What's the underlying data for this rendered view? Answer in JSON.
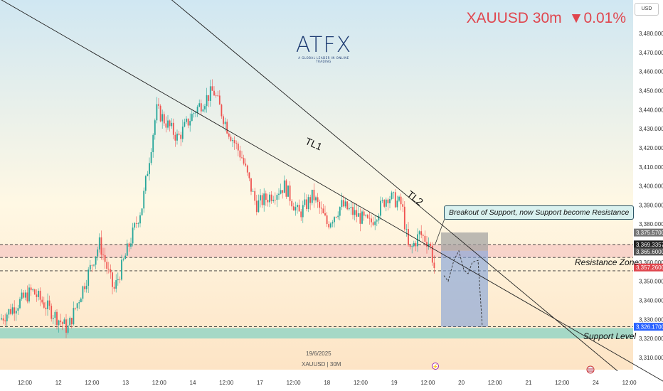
{
  "header": {
    "symbol": "XAUUSD 30m",
    "change": "▼0.01%",
    "currency": "USD",
    "logo_text": "ATFX",
    "logo_tagline": "A GLOBAL LEADER IN ONLINE TRADING"
  },
  "annotations": {
    "note": "Breakout of Support, now Support become Resistance",
    "resistance_label": "Resistance Zone",
    "support_label": "Support Level",
    "tl1": "TL1",
    "tl2": "TL2",
    "footer_date": "19/6/2025",
    "footer_symbol": "XAUUSD | 30M"
  },
  "colors": {
    "up": "#26a69a",
    "down": "#ef5350",
    "ticker": "#e0464e",
    "zone_fill": "#f6c9c4",
    "support_fill": "#8fd3c4",
    "box_fill": "#7b9fd8",
    "box_top": "#a0a0a0"
  },
  "chart_data": {
    "type": "candlestick",
    "ylim": [
      3305,
      3495
    ],
    "y_ticks": [
      "3,310.0000",
      "3,320.0000",
      "3,330.0000",
      "3,340.0000",
      "3,350.0000",
      "3,360.0000",
      "3,370.0000",
      "3,380.0000",
      "3,390.0000",
      "3,400.0000",
      "3,410.0000",
      "3,420.0000",
      "3,430.0000",
      "3,440.0000",
      "3,450.0000",
      "3,460.0000",
      "3,470.0000",
      "3,480.0000"
    ],
    "x_ticks": [
      "12:00",
      "12",
      "12:00",
      "13",
      "12:00",
      "14",
      "12:00",
      "17",
      "12:00",
      "18",
      "12:00",
      "19",
      "12:00",
      "20",
      "12:00",
      "21",
      "12:00",
      "24",
      "12:00"
    ],
    "price_tags": [
      {
        "label": "3,375.5700",
        "value": 3375.57,
        "color": "#777777"
      },
      {
        "label": "3,369.3357",
        "value": 3369.34,
        "color": "#222222"
      },
      {
        "label": "3,365.6000",
        "value": 3365.6,
        "color": "#555555"
      },
      {
        "label": "3,357.2600",
        "value": 3357.26,
        "color": "#e0464e"
      },
      {
        "label": "3,326.1700",
        "value": 3326.17,
        "color": "#2962ff"
      }
    ],
    "resistance_zone": [
      3362.5,
      3369.3
    ],
    "support_zone": [
      3320,
      3325.5
    ],
    "dashed_levels": [
      3369.3,
      3362.5,
      3355.5,
      3326.2
    ],
    "trendlines": [
      {
        "name": "TL1",
        "from": [
          0,
          3498
        ],
        "to": [
          935,
          3297
        ]
      },
      {
        "name": "TL2",
        "from": [
          240,
          3498
        ],
        "to": [
          868,
          3303
        ]
      }
    ],
    "projection_box": {
      "x0": 620,
      "x1": 686,
      "top": 3375.6,
      "mid": 3366,
      "bottom": 3326.2
    },
    "projection_path": [
      [
        624,
        3353
      ],
      [
        630,
        3350
      ],
      [
        638,
        3361
      ],
      [
        645,
        3366
      ],
      [
        652,
        3356
      ],
      [
        658,
        3354
      ],
      [
        664,
        3360
      ],
      [
        672,
        3361
      ],
      [
        678,
        3326
      ]
    ],
    "key_points": [
      [
        0,
        3330
      ],
      [
        45,
        3345
      ],
      [
        95,
        3325
      ],
      [
        140,
        3370
      ],
      [
        160,
        3345
      ],
      [
        200,
        3390
      ],
      [
        220,
        3440
      ],
      [
        250,
        3425
      ],
      [
        275,
        3440
      ],
      [
        300,
        3450
      ],
      [
        320,
        3430
      ],
      [
        340,
        3415
      ],
      [
        360,
        3390
      ],
      [
        380,
        3395
      ],
      [
        400,
        3400
      ],
      [
        420,
        3385
      ],
      [
        440,
        3395
      ],
      [
        460,
        3380
      ],
      [
        480,
        3390
      ],
      [
        500,
        3385
      ],
      [
        520,
        3380
      ],
      [
        545,
        3395
      ],
      [
        565,
        3390
      ],
      [
        575,
        3365
      ],
      [
        590,
        3375
      ],
      [
        604,
        3370
      ],
      [
        614,
        3350
      ]
    ]
  }
}
